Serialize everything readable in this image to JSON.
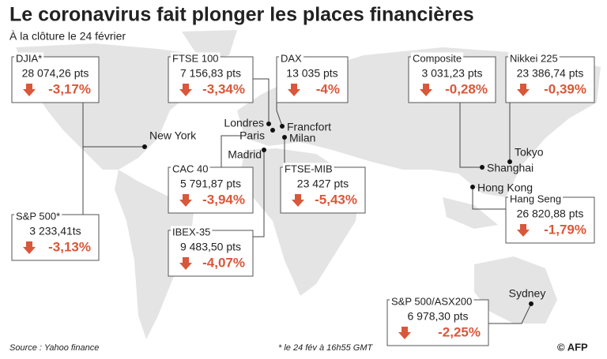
{
  "header": {
    "title": "Le coronavirus fait plonger les places financières",
    "subtitle": "À la clôture le 24 février"
  },
  "indices": [
    {
      "name": "DJIA*",
      "value": "28 074,26 pts",
      "change": "-3,17%"
    },
    {
      "name": "FTSE 100",
      "value": "7 156,83 pts",
      "change": "-3,34%"
    },
    {
      "name": "DAX",
      "value": "13 035 pts",
      "change": "-4%"
    },
    {
      "name": "Composite",
      "value": "3 031,23 pts",
      "change": "-0,28%"
    },
    {
      "name": "Nikkei 225",
      "value": "23 386,74 pts",
      "change": "-0,39%"
    },
    {
      "name": "CAC 40",
      "value": "5 791,87 pts",
      "change": "-3,94%"
    },
    {
      "name": "FTSE-MIB",
      "value": "23 427 pts",
      "change": "-5,43%"
    },
    {
      "name": "S&P 500*",
      "value": "3 233,41ts",
      "change": "-3,13%"
    },
    {
      "name": "IBEX-35",
      "value": "9 483,50 pts",
      "change": "-4,07%"
    },
    {
      "name": "Hang Seng",
      "value": "26 820,88 pts",
      "change": "-1,79%"
    },
    {
      "name": "S&P 500/ASX200",
      "value": "6 978,30 pts",
      "change": "-2,25%"
    }
  ],
  "cities": [
    "New York",
    "Londres",
    "Paris",
    "Francfort",
    "Milan",
    "Madrid",
    "Tokyo",
    "Shanghai",
    "Hong Kong",
    "Sydney"
  ],
  "footer": {
    "source": "Source : Yahoo finance",
    "note": "* le 24 fév à 16h55 GMT",
    "credit": "© AFP"
  }
}
